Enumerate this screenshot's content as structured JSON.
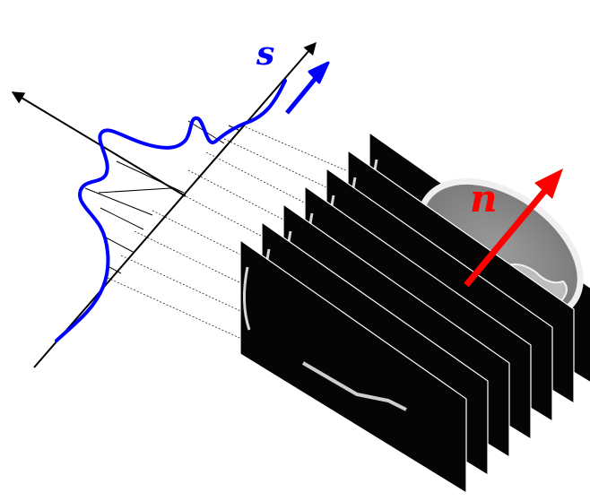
{
  "labels": {
    "s": "s",
    "n": "n"
  },
  "colors": {
    "axis": "#000000",
    "profile": "#0000ff",
    "normal_arrow": "#ff0000",
    "slice_bg": "#000000",
    "bone": "#e6e6e6",
    "tissue": "#8a8a8a",
    "projection_lines": "#333333"
  },
  "slices": {
    "count": 7
  }
}
